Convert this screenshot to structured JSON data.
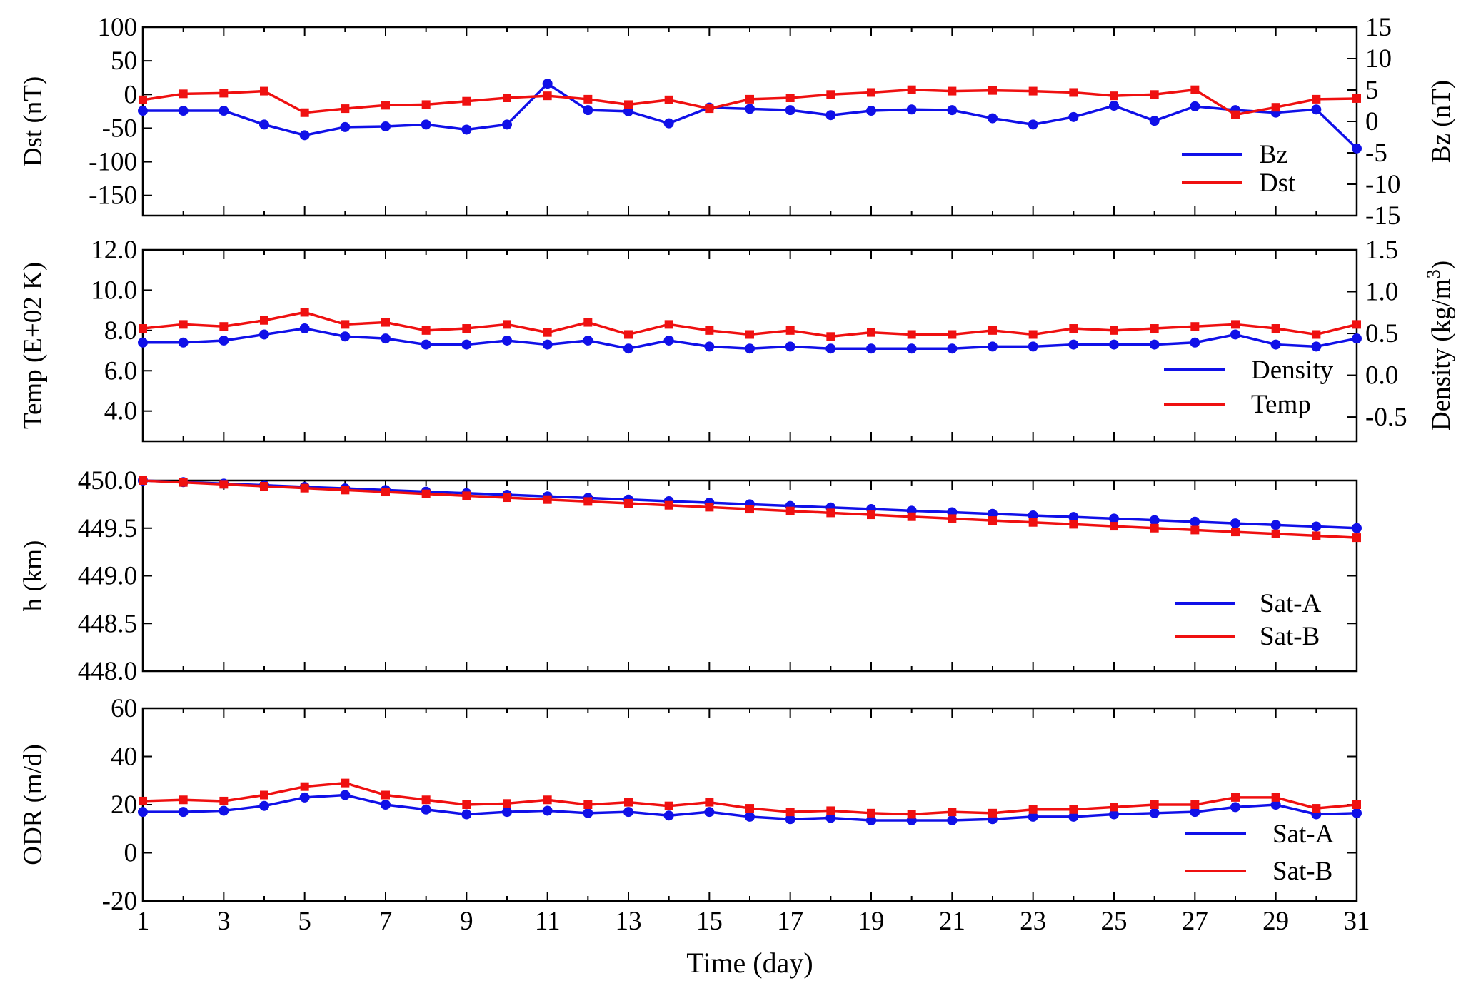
{
  "chart_data": {
    "type": "line",
    "x_label": "Time (day)",
    "x": [
      1,
      2,
      3,
      4,
      5,
      6,
      7,
      8,
      9,
      10,
      11,
      12,
      13,
      14,
      15,
      16,
      17,
      18,
      19,
      20,
      21,
      22,
      23,
      24,
      25,
      26,
      27,
      28,
      29,
      30,
      31
    ],
    "x_tick_labels": [
      "1",
      "3",
      "5",
      "7",
      "9",
      "11",
      "13",
      "15",
      "17",
      "19",
      "21",
      "23",
      "25",
      "27",
      "29",
      "31"
    ],
    "x_range": [
      1,
      31
    ],
    "colors": {
      "blue": "#1010e8",
      "red": "#ef1010"
    },
    "panels": [
      {
        "left_label": "Dst (nT)",
        "right_label": "Bz (nT)",
        "left_range": [
          -180,
          100
        ],
        "left_ticks": [
          "100",
          "50",
          "0",
          "-50",
          "-100",
          "-150"
        ],
        "right_range": [
          -15,
          15
        ],
        "right_ticks": [
          "15",
          "10",
          "5",
          "0",
          "-5",
          "-10",
          "-15"
        ],
        "series": [
          {
            "name": "Bz",
            "color": "blue",
            "marker": "circle",
            "axis": "right",
            "values": [
              1.7,
              1.7,
              1.7,
              -0.5,
              -2.2,
              -0.9,
              -0.8,
              -0.5,
              -1.3,
              -0.5,
              6.0,
              1.8,
              1.6,
              -0.3,
              2.2,
              2.0,
              1.8,
              1.0,
              1.7,
              1.9,
              1.8,
              0.5,
              -0.5,
              0.7,
              2.5,
              0.1,
              2.4,
              1.8,
              1.4,
              1.9,
              -4.3
            ]
          },
          {
            "name": "Dst",
            "color": "red",
            "marker": "square",
            "axis": "left",
            "values": [
              -8,
              1,
              2,
              5,
              -27,
              -21,
              -16,
              -15,
              -10,
              -5,
              -2,
              -7,
              -15,
              -8,
              -21,
              -7,
              -5,
              0,
              3,
              7,
              5,
              6,
              5,
              3,
              -2,
              0,
              7,
              -30,
              -19,
              -7,
              -6
            ]
          }
        ]
      },
      {
        "left_label": "Temp (E+02 K)",
        "right_label_parts": [
          "Density  (kg/m",
          "3",
          ")"
        ],
        "left_range": [
          2.5,
          12.0
        ],
        "left_ticks": [
          "12.0",
          "10.0",
          "8.0",
          "6.0",
          "4.0"
        ],
        "right_range": [
          -0.79,
          1.5
        ],
        "right_ticks": [
          "1.5",
          "1.0",
          "0.5",
          "0.0",
          "-0.5"
        ],
        "series": [
          {
            "name": "Density",
            "color": "blue",
            "marker": "circle",
            "axis": "left",
            "values": [
              7.4,
              7.4,
              7.5,
              7.8,
              8.1,
              7.7,
              7.6,
              7.3,
              7.3,
              7.5,
              7.3,
              7.5,
              7.1,
              7.5,
              7.2,
              7.1,
              7.2,
              7.1,
              7.1,
              7.1,
              7.1,
              7.2,
              7.2,
              7.3,
              7.3,
              7.3,
              7.4,
              7.8,
              7.3,
              7.2,
              7.6
            ]
          },
          {
            "name": "Temp",
            "color": "red",
            "marker": "square",
            "axis": "left",
            "values": [
              8.1,
              8.3,
              8.2,
              8.5,
              8.9,
              8.3,
              8.4,
              8.0,
              8.1,
              8.3,
              7.9,
              8.4,
              7.8,
              8.3,
              8.0,
              7.8,
              8.0,
              7.7,
              7.9,
              7.8,
              7.8,
              8.0,
              7.8,
              8.1,
              8.0,
              8.1,
              8.2,
              8.3,
              8.1,
              7.8,
              8.3
            ]
          }
        ]
      },
      {
        "left_label": "h (km)",
        "left_range": [
          448.0,
          450.0
        ],
        "left_ticks": [
          "450.0",
          "449.5",
          "449.0",
          "448.5",
          "448.0"
        ],
        "series": [
          {
            "name": "Sat-A",
            "color": "blue",
            "marker": "circle",
            "axis": "left",
            "values": [
              450.0,
              449.983,
              449.967,
              449.95,
              449.933,
              449.917,
              449.9,
              449.883,
              449.867,
              449.85,
              449.833,
              449.817,
              449.8,
              449.783,
              449.767,
              449.75,
              449.733,
              449.717,
              449.7,
              449.683,
              449.667,
              449.65,
              449.633,
              449.617,
              449.6,
              449.583,
              449.567,
              449.55,
              449.533,
              449.517,
              449.5
            ]
          },
          {
            "name": "Sat-B",
            "color": "red",
            "marker": "square",
            "axis": "left",
            "values": [
              450.0,
              449.98,
              449.96,
              449.94,
              449.92,
              449.9,
              449.88,
              449.86,
              449.84,
              449.82,
              449.8,
              449.78,
              449.76,
              449.74,
              449.72,
              449.7,
              449.68,
              449.66,
              449.64,
              449.62,
              449.6,
              449.58,
              449.56,
              449.54,
              449.52,
              449.5,
              449.48,
              449.46,
              449.44,
              449.42,
              449.4
            ]
          }
        ]
      },
      {
        "left_label": "ODR (m/d)",
        "left_range": [
          -20,
          60
        ],
        "left_ticks": [
          "60",
          "40",
          "20",
          "0",
          "-20"
        ],
        "series": [
          {
            "name": "Sat-A",
            "color": "blue",
            "marker": "circle",
            "axis": "left",
            "values": [
              17,
              17,
              17.5,
              19.5,
              23,
              24,
              20,
              18,
              16,
              17,
              17.5,
              16.5,
              17,
              15.5,
              17,
              15,
              14,
              14.5,
              13.5,
              13.5,
              13.5,
              14,
              15,
              15,
              16,
              16.5,
              17,
              19,
              20,
              16,
              16.5
            ]
          },
          {
            "name": "Sat-B",
            "color": "red",
            "marker": "square",
            "axis": "left",
            "values": [
              21.5,
              22,
              21.5,
              24,
              27.5,
              29,
              24,
              22,
              20,
              20.5,
              22,
              20,
              21,
              19.5,
              21,
              18.5,
              17,
              17.5,
              16.5,
              16,
              17,
              16.5,
              18,
              18,
              19,
              20,
              20,
              23,
              23,
              18.5,
              20
            ]
          }
        ]
      }
    ]
  }
}
